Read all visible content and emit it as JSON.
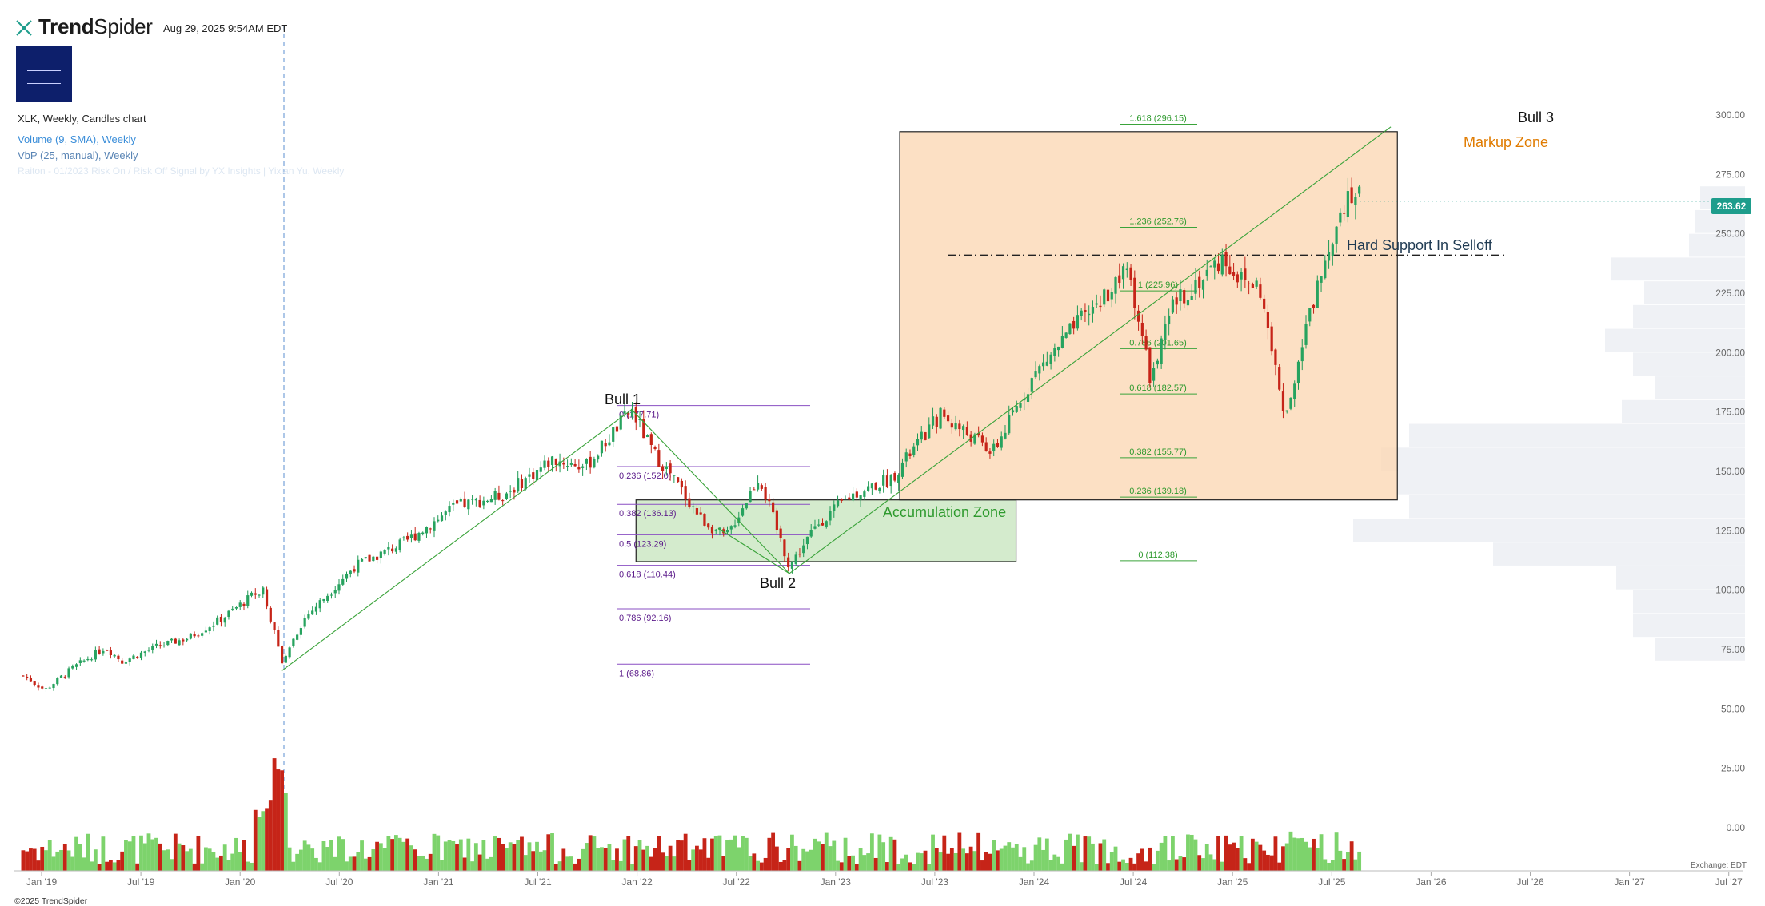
{
  "header": {
    "brand_prefix": "Trend",
    "brand_suffix": "Spider",
    "timestamp": "Aug 29, 2025 9:54AM EDT"
  },
  "legend": {
    "title": "XLK, Weekly, Candles chart",
    "volume": "Volume (9, SMA), Weekly",
    "vbp": "VbP (25, manual), Weekly",
    "faded": "Raiton - 01/2023 Risk On / Risk Off Signal by YX Insights | Yixian Yu, Weekly"
  },
  "current_price": "263.62",
  "footer": {
    "copyright": "©2025 TrendSpider",
    "exchange": "Exchange: EDT"
  },
  "colors": {
    "up": "#7dd36c",
    "down": "#c62418",
    "accent": "#1e9d8c",
    "fib_blue": "#5b1a8a",
    "fib_green": "#2e9a2e"
  },
  "chart_data": {
    "type": "candlestick",
    "title": "XLK, Weekly, Candles chart",
    "y_axis": {
      "ticks": [
        "300.00",
        "275.00",
        "250.00",
        "225.00",
        "200.00",
        "175.00",
        "150.00",
        "125.00",
        "100.00",
        "75.00",
        "50.00",
        "25.00",
        "0.00"
      ],
      "range": [
        -14,
        312
      ]
    },
    "x_axis": {
      "ticks": [
        "Jan '19",
        "Jul '19",
        "Jan '20",
        "Jul '20",
        "Jan '21",
        "Jul '21",
        "Jan '22",
        "Jul '22",
        "Jan '23",
        "Jul '23",
        "Jan '24",
        "Jul '24",
        "Jan '25",
        "Jul '25",
        "Jan '26",
        "Jul '26",
        "Jan '27",
        "Jul '27"
      ]
    },
    "price_path": [
      [
        "2018-12-01",
        64
      ],
      [
        "2019-01-10",
        58
      ],
      [
        "2019-03-01",
        67
      ],
      [
        "2019-05-01",
        76
      ],
      [
        "2019-06-01",
        70
      ],
      [
        "2019-08-01",
        76
      ],
      [
        "2019-10-01",
        80
      ],
      [
        "2019-12-01",
        88
      ],
      [
        "2020-02-15",
        101
      ],
      [
        "2020-03-20",
        70
      ],
      [
        "2020-05-01",
        88
      ],
      [
        "2020-08-01",
        110
      ],
      [
        "2020-11-01",
        120
      ],
      [
        "2021-02-01",
        135
      ],
      [
        "2021-05-01",
        140
      ],
      [
        "2021-08-01",
        155
      ],
      [
        "2021-10-01",
        152
      ],
      [
        "2021-12-24",
        176
      ],
      [
        "2022-02-01",
        158
      ],
      [
        "2022-03-01",
        150
      ],
      [
        "2022-05-01",
        130
      ],
      [
        "2022-06-15",
        122
      ],
      [
        "2022-08-15",
        148
      ],
      [
        "2022-10-10",
        110
      ],
      [
        "2022-12-01",
        128
      ],
      [
        "2023-02-01",
        140
      ],
      [
        "2023-04-15",
        147
      ],
      [
        "2023-07-15",
        174
      ],
      [
        "2023-10-20",
        158
      ],
      [
        "2024-01-01",
        190
      ],
      [
        "2024-03-15",
        210
      ],
      [
        "2024-06-25",
        235
      ],
      [
        "2024-08-05",
        188
      ],
      [
        "2024-09-15",
        220
      ],
      [
        "2024-12-15",
        240
      ],
      [
        "2025-01-20",
        230
      ],
      [
        "2025-02-20",
        228
      ],
      [
        "2025-04-08",
        172
      ],
      [
        "2025-05-15",
        208
      ],
      [
        "2025-06-15",
        235
      ],
      [
        "2025-07-20",
        262
      ],
      [
        "2025-08-10",
        268
      ],
      [
        "2025-08-29",
        263.62
      ]
    ],
    "fib_retracement_1": {
      "levels": [
        {
          "label": "0 (177.71)",
          "value": 177.71
        },
        {
          "label": "0.236 (152.0)",
          "value": 152.0
        },
        {
          "label": "0.382 (136.13)",
          "value": 136.13
        },
        {
          "label": "0.5 (123.29)",
          "value": 123.29
        },
        {
          "label": "0.618 (110.44)",
          "value": 110.44
        },
        {
          "label": "0.786 (92.16)",
          "value": 92.16
        },
        {
          "label": "1 (68.86)",
          "value": 68.86
        }
      ]
    },
    "fib_extension_2": {
      "levels": [
        {
          "label": "1.618 (296.15)",
          "value": 296.15
        },
        {
          "label": "1.236 (252.76)",
          "value": 252.76
        },
        {
          "label": "1 (225.96)",
          "value": 225.96
        },
        {
          "label": "0.786 (201.65)",
          "value": 201.65
        },
        {
          "label": "0.618 (182.57)",
          "value": 182.57
        },
        {
          "label": "0.382 (155.77)",
          "value": 155.77
        },
        {
          "label": "0.236 (139.18)",
          "value": 139.18
        },
        {
          "label": "0 (112.38)",
          "value": 112.38
        }
      ]
    },
    "annotations": {
      "bull1": "Bull 1",
      "bull2": "Bull 2",
      "bull3": "Bull 3",
      "accumulation": "Accumulation Zone",
      "markup": "Markup Zone",
      "support": "Hard Support In Selloff"
    },
    "zones": [
      {
        "name": "Accumulation Zone",
        "x0": "2022-01-01",
        "x1": "2023-12-01",
        "y0": 112,
        "y1": 138
      },
      {
        "name": "Markup Zone",
        "x0": "2023-05-01",
        "x1": "2025-11-01",
        "y0": 138,
        "y1": 293
      }
    ],
    "support_level": 241,
    "vbp_profile": [
      {
        "price": 265,
        "volume": 0.08
      },
      {
        "price": 255,
        "volume": 0.09
      },
      {
        "price": 245,
        "volume": 0.1
      },
      {
        "price": 235,
        "volume": 0.24
      },
      {
        "price": 225,
        "volume": 0.18
      },
      {
        "price": 215,
        "volume": 0.2
      },
      {
        "price": 205,
        "volume": 0.25
      },
      {
        "price": 195,
        "volume": 0.2
      },
      {
        "price": 185,
        "volume": 0.16
      },
      {
        "price": 175,
        "volume": 0.22
      },
      {
        "price": 165,
        "volume": 0.6
      },
      {
        "price": 155,
        "volume": 0.65
      },
      {
        "price": 145,
        "volume": 0.62
      },
      {
        "price": 135,
        "volume": 0.6
      },
      {
        "price": 125,
        "volume": 0.7
      },
      {
        "price": 115,
        "volume": 0.45
      },
      {
        "price": 105,
        "volume": 0.23
      },
      {
        "price": 95,
        "volume": 0.2
      },
      {
        "price": 85,
        "volume": 0.2
      },
      {
        "price": 75,
        "volume": 0.16
      }
    ]
  }
}
